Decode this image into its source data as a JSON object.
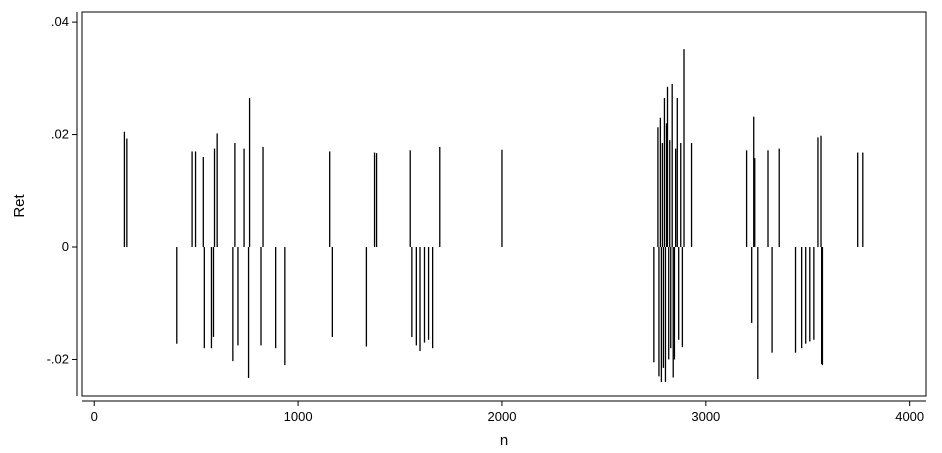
{
  "chart_data": {
    "type": "spike",
    "title": "",
    "xlabel": "n",
    "ylabel": "Ret",
    "xlim": [
      -60,
      4080
    ],
    "ylim": [
      -0.0265,
      0.0418
    ],
    "xticks": [
      0,
      1000,
      2000,
      3000,
      4000
    ],
    "xtick_labels": [
      "0",
      "1000",
      "2000",
      "3000",
      "4000"
    ],
    "yticks": [
      -0.02,
      0,
      0.02,
      0.04
    ],
    "ytick_labels": [
      "-.02",
      "0",
      ".02",
      ".04"
    ],
    "grid": false,
    "baseline": 0,
    "points": [
      {
        "x": 148,
        "y": 0.0205
      },
      {
        "x": 160,
        "y": 0.0193
      },
      {
        "x": 405,
        "y": -0.0172
      },
      {
        "x": 480,
        "y": 0.017
      },
      {
        "x": 497,
        "y": 0.017
      },
      {
        "x": 535,
        "y": 0.016
      },
      {
        "x": 540,
        "y": -0.018
      },
      {
        "x": 575,
        "y": -0.018
      },
      {
        "x": 585,
        "y": -0.016
      },
      {
        "x": 590,
        "y": 0.0175
      },
      {
        "x": 603,
        "y": 0.0202
      },
      {
        "x": 680,
        "y": -0.0203
      },
      {
        "x": 690,
        "y": 0.0185
      },
      {
        "x": 705,
        "y": -0.0175
      },
      {
        "x": 735,
        "y": 0.0175
      },
      {
        "x": 757,
        "y": -0.0233
      },
      {
        "x": 762,
        "y": 0.0265
      },
      {
        "x": 818,
        "y": -0.0175
      },
      {
        "x": 828,
        "y": 0.0178
      },
      {
        "x": 890,
        "y": -0.018
      },
      {
        "x": 935,
        "y": -0.021
      },
      {
        "x": 1155,
        "y": 0.017
      },
      {
        "x": 1168,
        "y": -0.016
      },
      {
        "x": 1335,
        "y": -0.0177
      },
      {
        "x": 1375,
        "y": 0.0168
      },
      {
        "x": 1385,
        "y": 0.0167
      },
      {
        "x": 1550,
        "y": 0.0172
      },
      {
        "x": 1558,
        "y": -0.016
      },
      {
        "x": 1580,
        "y": -0.0175
      },
      {
        "x": 1598,
        "y": -0.0185
      },
      {
        "x": 1620,
        "y": -0.017
      },
      {
        "x": 1640,
        "y": -0.0165
      },
      {
        "x": 1660,
        "y": -0.018
      },
      {
        "x": 1695,
        "y": 0.0178
      },
      {
        "x": 2000,
        "y": 0.0173
      },
      {
        "x": 2745,
        "y": -0.0205
      },
      {
        "x": 2765,
        "y": 0.0213
      },
      {
        "x": 2770,
        "y": -0.023
      },
      {
        "x": 2777,
        "y": 0.023
      },
      {
        "x": 2782,
        "y": -0.024
      },
      {
        "x": 2787,
        "y": 0.0185
      },
      {
        "x": 2792,
        "y": -0.0215
      },
      {
        "x": 2797,
        "y": 0.0265
      },
      {
        "x": 2802,
        "y": -0.024
      },
      {
        "x": 2807,
        "y": 0.022
      },
      {
        "x": 2812,
        "y": 0.0285
      },
      {
        "x": 2818,
        "y": -0.02
      },
      {
        "x": 2823,
        "y": 0.019
      },
      {
        "x": 2828,
        "y": -0.018
      },
      {
        "x": 2835,
        "y": 0.029
      },
      {
        "x": 2840,
        "y": -0.0232
      },
      {
        "x": 2846,
        "y": -0.02
      },
      {
        "x": 2852,
        "y": 0.0175
      },
      {
        "x": 2860,
        "y": 0.0265
      },
      {
        "x": 2867,
        "y": -0.0165
      },
      {
        "x": 2877,
        "y": 0.0185
      },
      {
        "x": 2885,
        "y": -0.0178
      },
      {
        "x": 2893,
        "y": 0.0352
      },
      {
        "x": 2930,
        "y": 0.0185
      },
      {
        "x": 3200,
        "y": 0.0172
      },
      {
        "x": 3225,
        "y": -0.0135
      },
      {
        "x": 3235,
        "y": 0.0232
      },
      {
        "x": 3240,
        "y": 0.0158
      },
      {
        "x": 3255,
        "y": -0.0235
      },
      {
        "x": 3305,
        "y": 0.0172
      },
      {
        "x": 3325,
        "y": -0.0188
      },
      {
        "x": 3360,
        "y": 0.0175
      },
      {
        "x": 3440,
        "y": -0.0188
      },
      {
        "x": 3470,
        "y": -0.018
      },
      {
        "x": 3490,
        "y": -0.0172
      },
      {
        "x": 3510,
        "y": -0.0168
      },
      {
        "x": 3530,
        "y": -0.0165
      },
      {
        "x": 3550,
        "y": 0.0195
      },
      {
        "x": 3565,
        "y": 0.0198
      },
      {
        "x": 3568,
        "y": -0.0208
      },
      {
        "x": 3572,
        "y": -0.021
      },
      {
        "x": 3745,
        "y": 0.0168
      },
      {
        "x": 3770,
        "y": 0.0168
      }
    ]
  }
}
